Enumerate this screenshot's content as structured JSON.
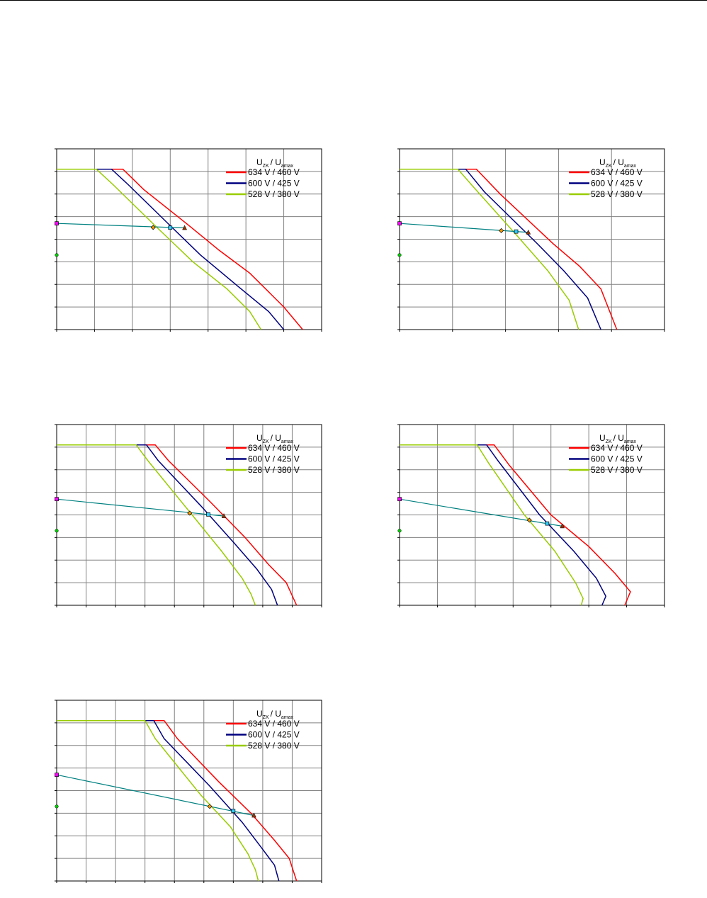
{
  "legend": {
    "title_main_1": "U",
    "title_sub_1": "ZK",
    "title_sep": "/",
    "title_main_2": "U",
    "title_sub_2": "amax",
    "entries": [
      {
        "label": "634 V / 460 V",
        "color": "#ff0000"
      },
      {
        "label": "600 V / 425 V",
        "color": "#00007f"
      },
      {
        "label": "528 V / 380 V",
        "color": "#99cc00"
      }
    ]
  },
  "colors": {
    "load_line": "#008080",
    "marker_start_square": "#ff00ff",
    "marker_start_circle": "#00cc00",
    "marker_diamond": "#ff9900",
    "marker_square": "#33ccff",
    "marker_triangle": "#993300",
    "grid": "#808080"
  },
  "chart_data": [
    {
      "type": "line",
      "xlim": [
        0,
        7
      ],
      "ylim": [
        0,
        8
      ],
      "grid": true,
      "legend_position": "top-right",
      "series": [
        {
          "name": "634 V / 460 V",
          "x": [
            0,
            1.75,
            2.3,
            3.5,
            4.3,
            5.1,
            6.0,
            6.5
          ],
          "y": [
            7.1,
            7.1,
            6.2,
            4.6,
            3.5,
            2.5,
            1.0,
            0
          ]
        },
        {
          "name": "600 V / 425 V",
          "x": [
            0,
            1.45,
            1.9,
            3.0,
            3.8,
            4.8,
            5.6,
            6.0
          ],
          "y": [
            7.1,
            7.1,
            6.4,
            4.6,
            3.3,
            1.9,
            0.8,
            0
          ]
        },
        {
          "name": "528 V / 380 V",
          "x": [
            0,
            1.05,
            1.5,
            2.6,
            3.6,
            4.5,
            5.1,
            5.4
          ],
          "y": [
            7.1,
            7.1,
            6.4,
            4.6,
            3.0,
            1.8,
            0.8,
            0
          ]
        }
      ],
      "load_line": {
        "x": [
          0,
          3.4
        ],
        "y": [
          4.7,
          4.5
        ]
      },
      "markers": {
        "diamond": [
          2.55,
          4.52
        ],
        "square": [
          3.0,
          4.51
        ],
        "triangle": [
          3.38,
          4.5
        ],
        "start_square": [
          0,
          4.7
        ],
        "start_circle": [
          0,
          3.3
        ]
      }
    },
    {
      "type": "line",
      "xlim": [
        0,
        5
      ],
      "ylim": [
        0,
        8
      ],
      "grid": true,
      "legend_position": "top-right",
      "series": [
        {
          "name": "634 V / 460 V",
          "x": [
            0,
            1.45,
            1.9,
            2.9,
            3.4,
            3.8,
            4.1
          ],
          "y": [
            7.1,
            7.1,
            6.0,
            3.8,
            2.8,
            1.8,
            0
          ]
        },
        {
          "name": "600 V / 425 V",
          "x": [
            0,
            1.25,
            1.6,
            2.6,
            3.1,
            3.55,
            3.8
          ],
          "y": [
            7.1,
            7.1,
            6.1,
            3.8,
            2.6,
            1.4,
            0
          ]
        },
        {
          "name": "528 V / 380 V",
          "x": [
            0,
            1.1,
            1.4,
            2.2,
            2.8,
            3.2,
            3.38
          ],
          "y": [
            7.1,
            7.1,
            6.3,
            4.2,
            2.6,
            1.3,
            0
          ]
        }
      ],
      "load_line": {
        "x": [
          0,
          2.43
        ],
        "y": [
          4.7,
          4.3
        ]
      },
      "markers": {
        "diamond": [
          1.92,
          4.38
        ],
        "square": [
          2.2,
          4.34
        ],
        "triangle": [
          2.43,
          4.3
        ],
        "start_square": [
          0,
          4.7
        ],
        "start_circle": [
          0,
          3.3
        ]
      }
    },
    {
      "type": "line",
      "xlim": [
        0,
        9
      ],
      "ylim": [
        0,
        8
      ],
      "grid": true,
      "legend_position": "top-right",
      "series": [
        {
          "name": "634 V / 460 V",
          "x": [
            0,
            3.35,
            3.8,
            5.2,
            6.4,
            7.2,
            7.8,
            8.15
          ],
          "y": [
            7.1,
            7.1,
            6.4,
            4.6,
            3.0,
            1.8,
            1.0,
            0
          ]
        },
        {
          "name": "600 V / 425 V",
          "x": [
            0,
            3.05,
            3.45,
            4.9,
            6.0,
            6.8,
            7.3,
            7.5
          ],
          "y": [
            7.1,
            7.1,
            6.4,
            4.4,
            2.8,
            1.6,
            0.7,
            0
          ]
        },
        {
          "name": "528 V / 380 V",
          "x": [
            0,
            2.7,
            3.1,
            4.6,
            5.6,
            6.3,
            6.6,
            6.75
          ],
          "y": [
            7.1,
            7.1,
            6.4,
            4.0,
            2.4,
            1.2,
            0.5,
            0
          ]
        }
      ],
      "load_line": {
        "x": [
          0,
          5.68
        ],
        "y": [
          4.7,
          3.95
        ]
      },
      "markers": {
        "diamond": [
          4.52,
          4.08
        ],
        "square": [
          5.15,
          4.02
        ],
        "triangle": [
          5.68,
          3.95
        ],
        "start_square": [
          0,
          4.7
        ],
        "start_circle": [
          0,
          3.3
        ]
      }
    },
    {
      "type": "line",
      "xlim": [
        0,
        7
      ],
      "ylim": [
        0,
        8
      ],
      "grid": true,
      "legend_position": "top-right",
      "series": [
        {
          "name": "634 V / 460 V",
          "x": [
            0,
            2.5,
            2.9,
            4.0,
            5.0,
            5.7,
            6.1,
            5.95
          ],
          "y": [
            7.1,
            7.1,
            6.2,
            4.0,
            2.6,
            1.4,
            0.6,
            0
          ]
        },
        {
          "name": "600 V / 425 V",
          "x": [
            0,
            2.3,
            2.6,
            3.7,
            4.6,
            5.2,
            5.45,
            5.35
          ],
          "y": [
            7.1,
            7.1,
            6.4,
            4.0,
            2.4,
            1.2,
            0.4,
            0
          ]
        },
        {
          "name": "528 V / 380 V",
          "x": [
            0,
            2.05,
            2.35,
            3.3,
            4.1,
            4.65,
            4.85,
            4.8
          ],
          "y": [
            7.1,
            7.1,
            6.3,
            4.0,
            2.4,
            1.0,
            0.3,
            0
          ]
        }
      ],
      "load_line": {
        "x": [
          0,
          4.3
        ],
        "y": [
          4.7,
          3.5
        ]
      },
      "markers": {
        "diamond": [
          3.43,
          3.77
        ],
        "square": [
          3.9,
          3.62
        ],
        "triangle": [
          4.3,
          3.5
        ],
        "start_square": [
          0,
          4.7
        ],
        "start_circle": [
          0,
          3.3
        ]
      }
    },
    {
      "type": "line",
      "xlim": [
        0,
        9
      ],
      "ylim": [
        0,
        8
      ],
      "grid": true,
      "legend_position": "top-right",
      "series": [
        {
          "name": "634 V / 460 V",
          "x": [
            0,
            3.65,
            4.1,
            5.5,
            6.6,
            7.4,
            7.9,
            8.15
          ],
          "y": [
            7.1,
            7.1,
            6.3,
            4.4,
            3.0,
            1.8,
            1.0,
            0
          ]
        },
        {
          "name": "600 V / 425 V",
          "x": [
            0,
            3.3,
            3.65,
            5.2,
            6.3,
            7.0,
            7.4,
            7.55
          ],
          "y": [
            7.1,
            7.1,
            6.3,
            4.2,
            2.6,
            1.4,
            0.7,
            0
          ]
        },
        {
          "name": "528 V / 380 V",
          "x": [
            0,
            3.0,
            3.35,
            4.9,
            5.9,
            6.5,
            6.75,
            6.85
          ],
          "y": [
            7.1,
            7.1,
            6.3,
            3.8,
            2.4,
            1.2,
            0.5,
            0
          ]
        }
      ],
      "load_line": {
        "x": [
          0,
          6.7
        ],
        "y": [
          4.7,
          2.9
        ]
      },
      "markers": {
        "diamond": [
          5.2,
          3.3
        ],
        "square": [
          6.0,
          3.1
        ],
        "triangle": [
          6.7,
          2.9
        ],
        "start_square": [
          0,
          4.7
        ],
        "start_circle": [
          0,
          3.3
        ]
      }
    }
  ]
}
